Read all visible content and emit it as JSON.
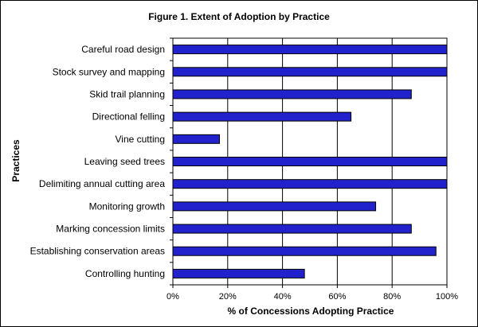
{
  "chart_data": {
    "type": "bar",
    "orientation": "horizontal",
    "title": "Figure 1. Extent of Adoption by Practice",
    "xlabel": "% of Concessions Adopting Practice",
    "ylabel": "Practices",
    "categories": [
      "Careful road design",
      "Stock survey and mapping",
      "Skid trail planning",
      "Directional felling",
      "Vine cutting",
      "Leaving seed trees",
      "Delimiting annual cutting area",
      "Monitoring growth",
      "Marking concession limits",
      "Establishing conservation areas",
      "Controlling hunting"
    ],
    "values": [
      100,
      100,
      87,
      65,
      17,
      100,
      100,
      74,
      87,
      96,
      48
    ],
    "xlim": [
      0,
      100
    ],
    "xticks": [
      "0%",
      "20%",
      "40%",
      "60%",
      "80%",
      "100%"
    ],
    "grid": true,
    "legend": "none",
    "bar_color": "#2222cc"
  }
}
